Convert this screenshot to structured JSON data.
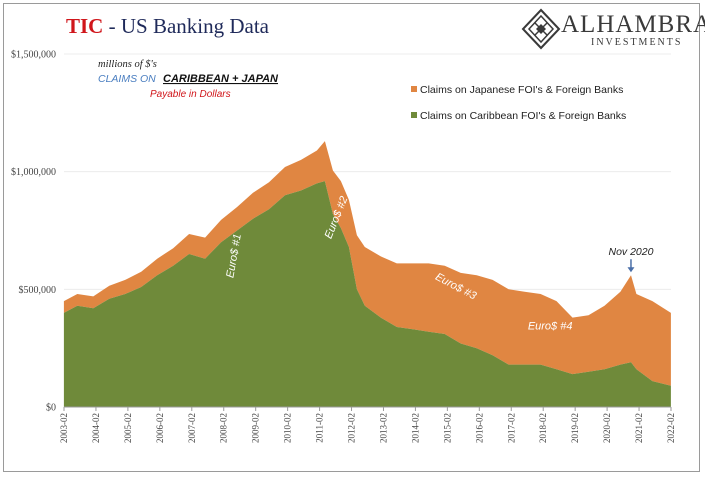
{
  "header": {
    "title_tic": "TIC",
    "title_rest": " - US Banking Data",
    "logo_name": "ALHAMBRA",
    "logo_sub": "INVESTMENTS"
  },
  "colors": {
    "japan": "#e08642",
    "caribbean": "#6f8a3a",
    "title_red": "#d0161b",
    "title_navy": "#1f2a5a",
    "subtitle_blue": "#4a7ec0"
  },
  "chart_data": {
    "type": "area",
    "stacked": true,
    "units_note": "millions of $'s",
    "subtitle_prefix": "CLAIMS ON",
    "subtitle_main": "CARIBBEAN + JAPAN",
    "subtitle_payable": "Payable in Dollars",
    "ylim": [
      0,
      1500000
    ],
    "y_ticks": [
      0,
      500000,
      1000000,
      1500000
    ],
    "y_tick_labels": [
      "$0",
      "$500,000",
      "$1,000,000",
      "$1,500,000"
    ],
    "xlim": [
      2003.083,
      2022.083
    ],
    "x_tick_labels": [
      "2003-02",
      "2004-02",
      "2005-02",
      "2006-02",
      "2007-02",
      "2008-02",
      "2009-02",
      "2010-02",
      "2011-02",
      "2012-02",
      "2013-02",
      "2014-02",
      "2015-02",
      "2016-02",
      "2017-02",
      "2018-02",
      "2019-02",
      "2020-02",
      "2021-02",
      "2022-02"
    ],
    "legend_position": "top-right",
    "series": [
      {
        "name": "Claims on Japanese FOI's & Foreign Banks",
        "color": "#e08642",
        "x": [
          2003.08,
          2003.5,
          2004.0,
          2004.5,
          2005.0,
          2005.5,
          2006.0,
          2006.5,
          2007.0,
          2007.5,
          2008.0,
          2008.5,
          2009.0,
          2009.5,
          2010.0,
          2010.5,
          2011.0,
          2011.25,
          2011.5,
          2011.75,
          2012.0,
          2012.25,
          2012.5,
          2013.0,
          2013.5,
          2014.0,
          2014.5,
          2015.0,
          2015.5,
          2016.0,
          2016.5,
          2017.0,
          2017.5,
          2018.0,
          2018.5,
          2019.0,
          2019.5,
          2020.0,
          2020.5,
          2020.83,
          2021.0,
          2021.5,
          2022.08
        ],
        "values": [
          50000,
          50000,
          50000,
          55000,
          60000,
          65000,
          70000,
          75000,
          85000,
          90000,
          95000,
          100000,
          110000,
          115000,
          120000,
          130000,
          140000,
          170000,
          185000,
          200000,
          200000,
          230000,
          250000,
          260000,
          270000,
          280000,
          290000,
          290000,
          300000,
          310000,
          320000,
          320000,
          310000,
          300000,
          290000,
          240000,
          240000,
          270000,
          310000,
          370000,
          320000,
          340000,
          310000
        ]
      },
      {
        "name": "Claims on Caribbean FOI's & Foreign Banks",
        "color": "#6f8a3a",
        "x": [
          2003.08,
          2003.5,
          2004.0,
          2004.5,
          2005.0,
          2005.5,
          2006.0,
          2006.5,
          2007.0,
          2007.5,
          2008.0,
          2008.5,
          2009.0,
          2009.5,
          2010.0,
          2010.5,
          2011.0,
          2011.25,
          2011.5,
          2011.75,
          2012.0,
          2012.25,
          2012.5,
          2013.0,
          2013.5,
          2014.0,
          2014.5,
          2015.0,
          2015.5,
          2016.0,
          2016.5,
          2017.0,
          2017.5,
          2018.0,
          2018.5,
          2019.0,
          2019.5,
          2020.0,
          2020.5,
          2020.83,
          2021.0,
          2021.5,
          2022.08
        ],
        "values": [
          400000,
          430000,
          420000,
          460000,
          480000,
          510000,
          560000,
          600000,
          650000,
          630000,
          700000,
          750000,
          800000,
          840000,
          900000,
          920000,
          950000,
          960000,
          820000,
          760000,
          680000,
          500000,
          430000,
          380000,
          340000,
          330000,
          320000,
          310000,
          270000,
          250000,
          220000,
          180000,
          180000,
          180000,
          160000,
          140000,
          150000,
          160000,
          180000,
          190000,
          160000,
          110000,
          90000
        ]
      }
    ],
    "annotations": [
      {
        "text": "Euro$ #1",
        "x": 2008.5,
        "y": 640000
      },
      {
        "text": "Euro$ #2",
        "x": 2011.7,
        "y": 800000
      },
      {
        "text": "Euro$ #3",
        "x": 2015.3,
        "y": 500000
      },
      {
        "text": "Euro$ #4",
        "x": 2018.3,
        "y": 330000
      },
      {
        "text": "Nov 2020",
        "x": 2020.83,
        "y": 645000
      }
    ]
  }
}
